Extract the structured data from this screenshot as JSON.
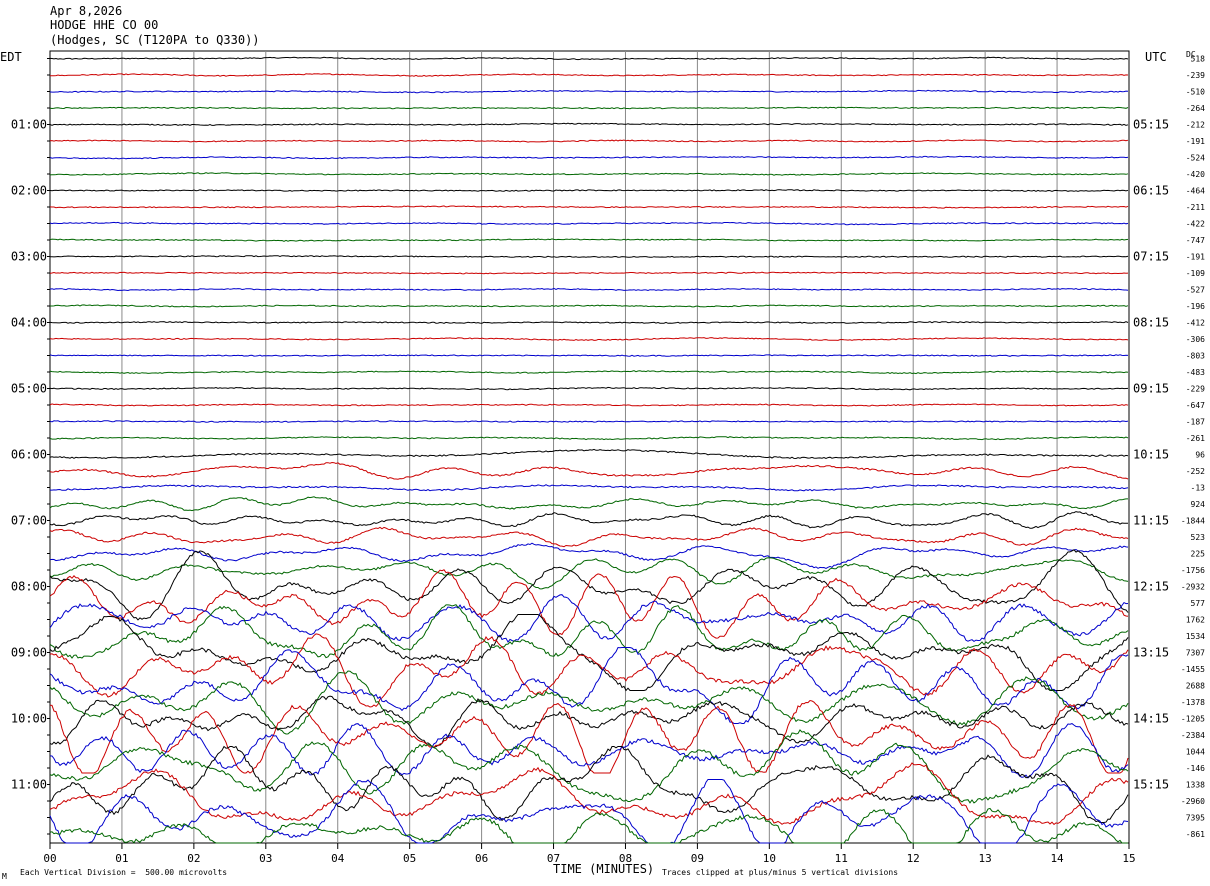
{
  "header": {
    "date": "Apr 8,2026",
    "station": "HODGE HHE CO 00",
    "location": "(Hodges, SC (T120PA to Q330))"
  },
  "labels": {
    "left_zone": "EDT",
    "right_zone": "UTC",
    "dc_header": "DC",
    "xlabel": "TIME (MINUTES)",
    "scale_note": "Each Vertical Division =  500.00 microvolts",
    "clip_note": "Traces clipped at plus/minus 5 vertical divisions",
    "corner_mark": "M"
  },
  "colors": {
    "trace_cycle": [
      "#000000",
      "#cc0000",
      "#0000cc",
      "#006600"
    ],
    "grid": "#888888",
    "axis": "#000000"
  },
  "chart_data": {
    "type": "line",
    "title": "HODGE HHE CO 00",
    "xlabel": "TIME (MINUTES)",
    "xlim": [
      0,
      15
    ],
    "x_ticks": [
      "00",
      "01",
      "02",
      "03",
      "04",
      "05",
      "06",
      "07",
      "08",
      "09",
      "10",
      "11",
      "12",
      "13",
      "14",
      "15"
    ],
    "left_time_labels": [
      "01:00",
      "02:00",
      "03:00",
      "04:00",
      "05:00",
      "06:00",
      "07:00",
      "08:00",
      "09:00",
      "10:00",
      "11:00"
    ],
    "right_time_labels": [
      "05:15",
      "06:15",
      "07:15",
      "08:15",
      "09:15",
      "10:15",
      "11:15",
      "12:15",
      "13:15",
      "14:15",
      "15:15"
    ],
    "dc_offsets": [
      "518",
      "-239",
      "-510",
      "-264",
      "-212",
      "-191",
      "-524",
      "-420",
      "-464",
      "-211",
      "-422",
      "-747",
      "-191",
      "-109",
      "-527",
      "-196",
      "-412",
      "-306",
      "-803",
      "-483",
      "-229",
      "-647",
      "-187",
      "-261",
      "96",
      "-252",
      "-13",
      "924",
      "-1844",
      "523",
      "225",
      "-1756",
      "-2932",
      "577",
      "1762",
      "1534",
      "7307",
      "-1455",
      "2688",
      "-1378",
      "-1205",
      "-2384",
      "1044",
      "-146",
      "1338",
      "-2960",
      "7395",
      "-861"
    ],
    "trace_activity": [
      0.15,
      0.15,
      0.15,
      0.15,
      0.15,
      0.15,
      0.15,
      0.15,
      0.15,
      0.15,
      0.15,
      0.15,
      0.15,
      0.15,
      0.15,
      0.15,
      0.15,
      0.15,
      0.2,
      0.2,
      0.2,
      0.2,
      0.2,
      0.25,
      0.8,
      1.2,
      1.0,
      1.2,
      1.5,
      1.4,
      1.6,
      2.0,
      3.5,
      4.0,
      4.5,
      4.5,
      5.0,
      5.0,
      5.0,
      5.0,
      5.0,
      5.0,
      5.0,
      5.0,
      5.0,
      5.0,
      5.0,
      5.0
    ],
    "trace_count": 48,
    "minutes_per_trace": 15
  }
}
